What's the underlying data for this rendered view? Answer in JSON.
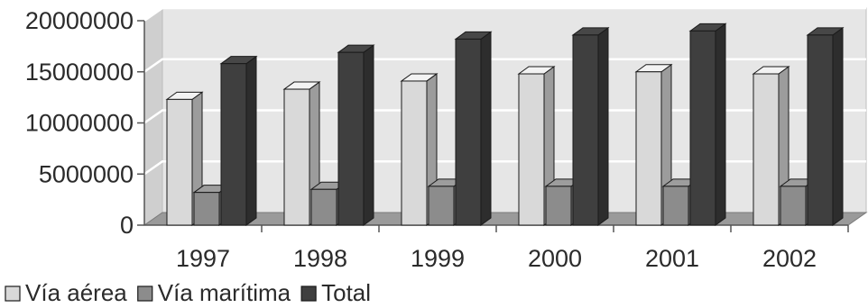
{
  "chart_data": {
    "type": "bar",
    "style": "3d-clustered-column",
    "categories": [
      "1997",
      "1998",
      "1999",
      "2000",
      "2001",
      "2002"
    ],
    "series": [
      {
        "name": "Vía aérea",
        "values": [
          12300000,
          13300000,
          14100000,
          14800000,
          15000000,
          14800000
        ],
        "color": "#d9d9d9"
      },
      {
        "name": "Vía marítima",
        "values": [
          3200000,
          3500000,
          3800000,
          3800000,
          3800000,
          3800000
        ],
        "color": "#8c8c8c"
      },
      {
        "name": "Total",
        "values": [
          15800000,
          16900000,
          18200000,
          18600000,
          19000000,
          18600000
        ],
        "color": "#3f3f3f"
      }
    ],
    "y_ticks": [
      "0",
      "5000000",
      "10000000",
      "15000000",
      "20000000"
    ],
    "ylim": [
      0,
      20000000
    ],
    "title": "",
    "xlabel": "",
    "ylabel": "",
    "grid": true,
    "legend_position": "bottom-left",
    "colors": {
      "wall": "#e6e6e6",
      "gridline": "#ffffff",
      "floor": "#9a9a9a",
      "outline": "#1a1a1a"
    }
  }
}
